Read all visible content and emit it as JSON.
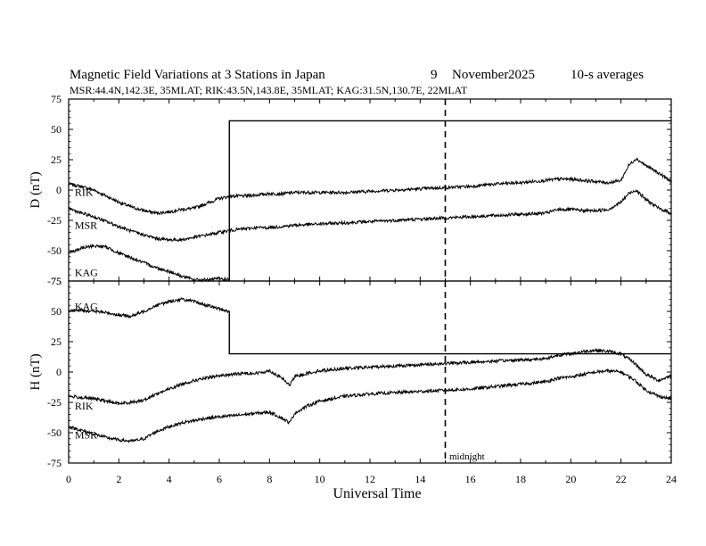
{
  "chart_data": {
    "type": "line",
    "title": {
      "main": "Magnetic Field Variations at 3 Stations in Japan",
      "day": "9",
      "month": "November",
      "year": "2025",
      "averaging": "10-s averages"
    },
    "subtitle": "MSR:44.4N,142.3E, 35MLAT;  RIK:43.5N,143.8E, 35MLAT;  KAG:31.5N,130.7E, 22MLAT",
    "xlabel": "Universal Time",
    "xlim": [
      0,
      24
    ],
    "x_ticks": [
      "0",
      "2",
      "4",
      "6",
      "8",
      "10",
      "12",
      "14",
      "16",
      "18",
      "20",
      "22",
      "24"
    ],
    "midnight_label": "midnight",
    "midnight_ut": 15,
    "colors": {
      "line": "#000000",
      "background": "#ffffff"
    },
    "panels": [
      {
        "name": "D",
        "ylabel": "D (nT)",
        "ylim": [
          -75,
          75
        ],
        "y_ticks": [
          "75",
          "50",
          "25",
          "0",
          "-25",
          "-50",
          "-75"
        ],
        "series": [
          {
            "name": "RIK",
            "label": "RIK",
            "label_at": [
              0.1,
              -2
            ],
            "x": [
              0,
              0.5,
              1,
              1.5,
              2,
              2.5,
              3,
              3.5,
              4,
              4.5,
              5,
              5.5,
              6,
              6.5,
              7,
              7.5,
              8,
              8.5,
              9,
              10,
              11,
              12,
              13,
              14,
              15,
              16,
              17,
              18,
              19,
              19.5,
              20,
              20.5,
              21,
              21.5,
              22,
              22.3,
              22.6,
              23,
              23.5,
              24
            ],
            "y": [
              5,
              3,
              0,
              -5,
              -10,
              -14,
              -17,
              -19,
              -18,
              -16,
              -15,
              -11,
              -7,
              -5,
              -5,
              -4,
              -3,
              -3,
              -2,
              -2,
              -2,
              -1,
              0,
              1,
              2,
              3,
              5,
              6,
              8,
              9,
              9,
              8,
              7,
              6,
              8,
              20,
              26,
              20,
              14,
              7
            ]
          },
          {
            "name": "MSR",
            "label": "MSR",
            "label_at": [
              0.1,
              -29
            ],
            "x": [
              0,
              0.5,
              1,
              1.5,
              2,
              2.5,
              3,
              3.5,
              4,
              4.5,
              5,
              5.5,
              6,
              6.5,
              7,
              7.5,
              8,
              8.5,
              9,
              10,
              11,
              12,
              13,
              14,
              15,
              16,
              17,
              18,
              19,
              19.5,
              20,
              20.5,
              21,
              21.5,
              22,
              22.3,
              22.6,
              23,
              23.5,
              24
            ],
            "y": [
              -15,
              -19,
              -22,
              -26,
              -30,
              -34,
              -37,
              -40,
              -41,
              -41,
              -39,
              -37,
              -35,
              -33,
              -32,
              -31,
              -31,
              -30,
              -29,
              -28,
              -27,
              -26,
              -25,
              -24,
              -23,
              -22,
              -21,
              -20,
              -19,
              -16,
              -16,
              -17,
              -17,
              -16,
              -10,
              -3,
              0,
              -8,
              -15,
              -19
            ]
          },
          {
            "name": "KAG",
            "label": "KAG",
            "label_at": [
              0.1,
              -68
            ],
            "x": [
              0,
              0.5,
              1,
              1.5,
              2,
              2.5,
              3,
              3.5,
              4,
              4.5,
              5,
              5.5,
              6,
              6.4
            ],
            "y": [
              -52,
              -48,
              -46,
              -47,
              -52,
              -56,
              -60,
              -64,
              -67,
              -71,
              -74,
              -74,
              -73,
              -74
            ]
          }
        ],
        "offset_step": {
          "x": 6.4,
          "y_before": -75,
          "y_after": 57,
          "x_end": 24
        }
      },
      {
        "name": "H",
        "ylabel": "H (nT)",
        "ylim": [
          -75,
          75
        ],
        "y_ticks": [
          "75",
          "50",
          "25",
          "0",
          "-25",
          "-50",
          "-75"
        ],
        "series": [
          {
            "name": "KAG",
            "label": "KAG",
            "label_at": [
              0.1,
              54
            ],
            "x": [
              0,
              0.5,
              1,
              1.5,
              2,
              2.5,
              3,
              3.5,
              4,
              4.5,
              5,
              5.5,
              6,
              6.4
            ],
            "y": [
              50,
              51,
              50,
              49,
              47,
              46,
              50,
              55,
              58,
              60,
              58,
              55,
              52,
              50
            ]
          },
          {
            "name": "RIK",
            "label": "RIK",
            "label_at": [
              0.1,
              -28
            ],
            "x": [
              0,
              0.5,
              1,
              1.5,
              2,
              2.5,
              3,
              3.5,
              4,
              4.5,
              5,
              5.5,
              6,
              6.5,
              7,
              7.5,
              8,
              8.5,
              8.8,
              9,
              9.5,
              10,
              11,
              12,
              13,
              14,
              15,
              16,
              17,
              18,
              19,
              19.5,
              20,
              20.5,
              21,
              21.5,
              22,
              22.5,
              23,
              23.5,
              24
            ],
            "y": [
              -20,
              -21,
              -22,
              -24,
              -26,
              -25,
              -23,
              -18,
              -14,
              -10,
              -7,
              -5,
              -3,
              -2,
              -1,
              -1,
              1,
              -5,
              -11,
              -4,
              -1,
              1,
              3,
              4,
              5,
              6,
              7,
              8,
              9,
              10,
              11,
              14,
              15,
              17,
              18,
              17,
              15,
              8,
              -2,
              -7,
              -3
            ]
          },
          {
            "name": "MSR",
            "label": "MSR",
            "label_at": [
              0.1,
              -52
            ],
            "x": [
              0,
              0.5,
              1,
              1.5,
              2,
              2.5,
              3,
              3.5,
              4,
              4.5,
              5,
              5.5,
              6,
              6.5,
              7,
              7.5,
              8,
              8.5,
              8.8,
              9,
              9.5,
              10,
              11,
              12,
              13,
              14,
              15,
              16,
              17,
              18,
              19,
              19.5,
              20,
              20.5,
              21,
              21.5,
              22,
              22.5,
              23,
              23.5,
              24
            ],
            "y": [
              -45,
              -48,
              -51,
              -54,
              -56,
              -57,
              -55,
              -49,
              -45,
              -42,
              -40,
              -38,
              -37,
              -36,
              -35,
              -34,
              -33,
              -38,
              -42,
              -34,
              -28,
              -24,
              -20,
              -18,
              -17,
              -16,
              -15,
              -14,
              -12,
              -10,
              -8,
              -5,
              -4,
              -2,
              0,
              1,
              0,
              -6,
              -15,
              -20,
              -22
            ]
          }
        ],
        "offset_step": {
          "x": 6.4,
          "y_before": 50,
          "y_after": 15,
          "x_end": 24
        }
      }
    ]
  }
}
